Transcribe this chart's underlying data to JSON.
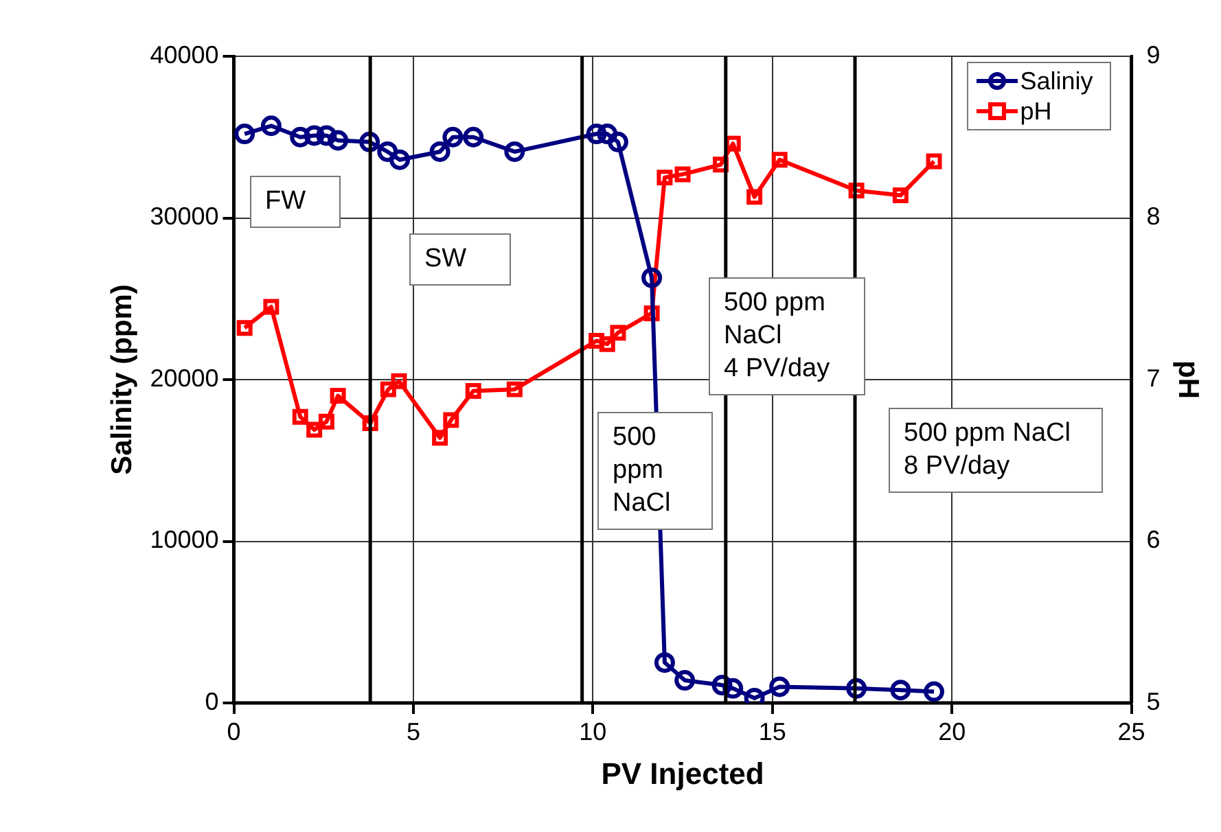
{
  "chart_data": {
    "type": "line",
    "xlabel": "PV Injected",
    "ylabel": "Salinity (ppm)",
    "y2label": "pH",
    "xlim": [
      0,
      25
    ],
    "xticks": [
      0,
      5,
      10,
      15,
      20,
      25
    ],
    "ylim": [
      0,
      40000
    ],
    "yticks": [
      0,
      10000,
      20000,
      30000,
      40000
    ],
    "y2lim": [
      5,
      9
    ],
    "y2ticks": [
      5,
      6,
      7,
      8,
      9
    ],
    "grid": true,
    "legend": "top right",
    "line_style": "solid",
    "series": [
      {
        "name": "Saliniy",
        "color": "#000080",
        "marker": "circle",
        "x": [
          0.3,
          1.04,
          1.85,
          2.24,
          2.58,
          2.9,
          3.78,
          4.28,
          4.62,
          5.74,
          6.1,
          6.67,
          7.82,
          10.1,
          10.4,
          10.7,
          11.64,
          12.0,
          12.56,
          13.6,
          13.9,
          14.5,
          15.2,
          17.34,
          18.57,
          19.5
        ],
        "values": [
          35200,
          35700,
          35000,
          35100,
          35100,
          34800,
          34700,
          34100,
          33600,
          34100,
          35000,
          35000,
          34100,
          35200,
          35200,
          34700,
          26300,
          2500,
          1400,
          1100,
          900,
          300,
          1000,
          900,
          800,
          700
        ]
      },
      {
        "name": "pH",
        "color": "#ff0000",
        "marker": "square",
        "axis": "y2",
        "x": [
          0.3,
          1.04,
          1.85,
          2.24,
          2.58,
          2.9,
          3.8,
          4.3,
          4.6,
          5.74,
          6.05,
          6.67,
          7.82,
          10.1,
          10.4,
          10.7,
          11.64,
          12.0,
          12.5,
          13.56,
          13.9,
          14.5,
          15.2,
          17.34,
          18.57,
          19.5
        ],
        "values": [
          7.32,
          7.45,
          6.77,
          6.69,
          6.74,
          6.9,
          6.73,
          6.94,
          6.99,
          6.64,
          6.75,
          6.93,
          6.94,
          7.24,
          7.22,
          7.29,
          7.41,
          8.25,
          8.27,
          8.33,
          8.46,
          8.13,
          8.36,
          8.17,
          8.14,
          8.35
        ]
      }
    ],
    "ref_lines": [
      {
        "axis": "x",
        "value": 3.8,
        "color": "#000000"
      },
      {
        "axis": "x",
        "value": 9.7,
        "color": "#000000"
      },
      {
        "axis": "x",
        "value": 13.7,
        "color": "#000000"
      },
      {
        "axis": "x",
        "value": 17.3,
        "color": "#000000"
      }
    ],
    "annotations": [
      "FW",
      "SW",
      "500\nppm\nNaCl",
      "500 ppm\nNaCl\n4 PV/day",
      "500 ppm NaCl\n8 PV/day"
    ]
  }
}
